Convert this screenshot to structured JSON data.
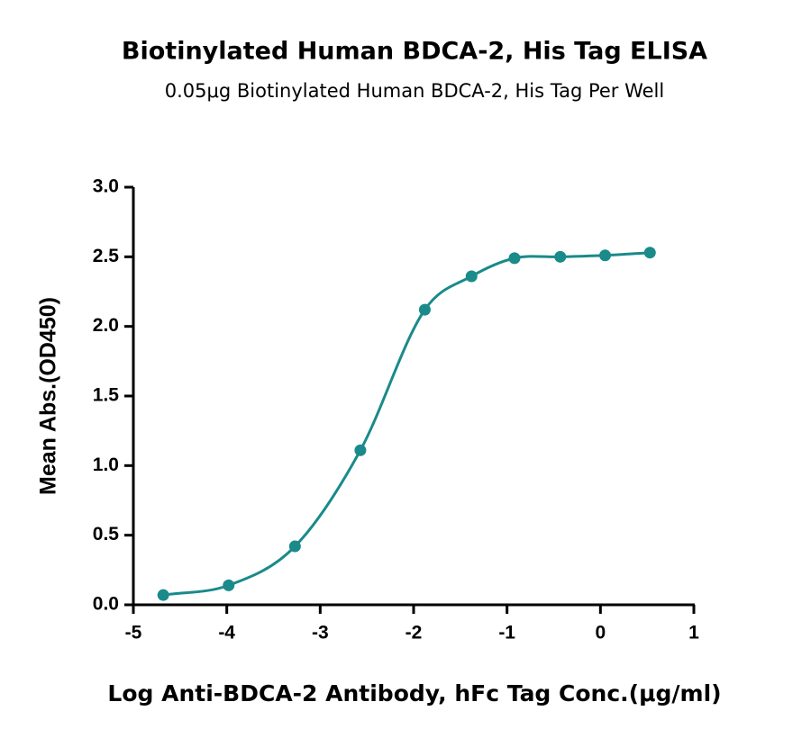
{
  "chart_data": {
    "type": "scatter",
    "title": "Biotinylated Human BDCA-2, His Tag ELISA",
    "subtitle": "0.05μg Biotinylated Human BDCA-2, His Tag Per Well",
    "x_label": "Log Anti-BDCA-2 Antibody, hFc Tag Conc.(μg/ml)",
    "y_label": "Mean Abs.(OD450)",
    "series": [
      {
        "color": "#1a8a8a",
        "x": [
          -4.68,
          -3.98,
          -3.27,
          -2.57,
          -1.88,
          -1.38,
          -0.92,
          -0.43,
          0.05,
          0.53
        ],
        "values": [
          0.07,
          0.14,
          0.42,
          1.11,
          2.12,
          2.36,
          2.49,
          2.5,
          2.51,
          2.53
        ]
      }
    ],
    "xlim": [
      -5,
      1
    ],
    "xticks": [
      -5,
      -4,
      -3,
      -2,
      -1,
      0,
      1
    ],
    "ylim": [
      0,
      3
    ],
    "yticks": [
      {
        "value": 0,
        "label": "0.0"
      },
      0.5,
      {
        "value": 1,
        "label": "1.0"
      },
      1.5,
      {
        "value": 2,
        "label": "2.0"
      },
      2.5,
      {
        "value": 3,
        "label": "3.0"
      }
    ],
    "grid": false
  }
}
